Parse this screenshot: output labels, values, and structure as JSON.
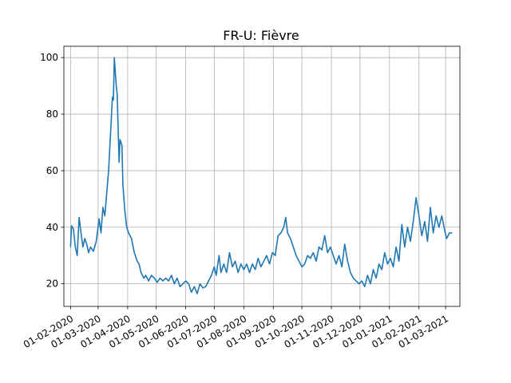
{
  "chart_data": {
    "type": "line",
    "title": "FR-U: Fièvre",
    "xlabel": "",
    "ylabel": "",
    "grid": true,
    "x_range": [
      "2020-01-25",
      "2021-03-16"
    ],
    "ylim": [
      12,
      104
    ],
    "x_ticks": [
      "2020-02-01",
      "2020-03-01",
      "2020-04-01",
      "2020-05-01",
      "2020-06-01",
      "2020-07-01",
      "2020-08-01",
      "2020-09-01",
      "2020-10-01",
      "2020-11-01",
      "2020-12-01",
      "2021-01-01",
      "2021-02-01",
      "2021-03-01"
    ],
    "x_tick_labels": [
      "01-02-2020",
      "01-03-2020",
      "01-04-2020",
      "01-05-2020",
      "01-06-2020",
      "01-07-2020",
      "01-08-2020",
      "01-09-2020",
      "01-10-2020",
      "01-11-2020",
      "01-12-2020",
      "01-01-2021",
      "01-02-2021",
      "01-03-2021"
    ],
    "y_ticks": [
      20,
      40,
      60,
      80,
      100
    ],
    "y_tick_labels": [
      "20",
      "40",
      "60",
      "80",
      "100"
    ],
    "series": [
      {
        "color": "#1f77b4",
        "points": [
          [
            "2020-02-01",
            33
          ],
          [
            "2020-02-02",
            40.5
          ],
          [
            "2020-02-04",
            39.5
          ],
          [
            "2020-02-06",
            33
          ],
          [
            "2020-02-08",
            30
          ],
          [
            "2020-02-10",
            43.5
          ],
          [
            "2020-02-12",
            38
          ],
          [
            "2020-02-14",
            33
          ],
          [
            "2020-02-16",
            36
          ],
          [
            "2020-02-18",
            34
          ],
          [
            "2020-02-20",
            31
          ],
          [
            "2020-02-22",
            33
          ],
          [
            "2020-02-25",
            31.5
          ],
          [
            "2020-02-28",
            35
          ],
          [
            "2020-03-02",
            43
          ],
          [
            "2020-03-04",
            38
          ],
          [
            "2020-03-06",
            47
          ],
          [
            "2020-03-08",
            44
          ],
          [
            "2020-03-10",
            52
          ],
          [
            "2020-03-12",
            60
          ],
          [
            "2020-03-14",
            73
          ],
          [
            "2020-03-16",
            86
          ],
          [
            "2020-03-17",
            85
          ],
          [
            "2020-03-18",
            100
          ],
          [
            "2020-03-20",
            90
          ],
          [
            "2020-03-21",
            87
          ],
          [
            "2020-03-23",
            63
          ],
          [
            "2020-03-24",
            71
          ],
          [
            "2020-03-26",
            69
          ],
          [
            "2020-03-27",
            55
          ],
          [
            "2020-03-29",
            46
          ],
          [
            "2020-03-31",
            40
          ],
          [
            "2020-04-02",
            38
          ],
          [
            "2020-04-05",
            36
          ],
          [
            "2020-04-08",
            31
          ],
          [
            "2020-04-11",
            28
          ],
          [
            "2020-04-13",
            27
          ],
          [
            "2020-04-15",
            24
          ],
          [
            "2020-04-18",
            22
          ],
          [
            "2020-04-20",
            23
          ],
          [
            "2020-04-23",
            21
          ],
          [
            "2020-04-26",
            23
          ],
          [
            "2020-04-29",
            22
          ],
          [
            "2020-05-02",
            20.5
          ],
          [
            "2020-05-05",
            22
          ],
          [
            "2020-05-08",
            21
          ],
          [
            "2020-05-11",
            22
          ],
          [
            "2020-05-14",
            21
          ],
          [
            "2020-05-17",
            23
          ],
          [
            "2020-05-20",
            20
          ],
          [
            "2020-05-23",
            22
          ],
          [
            "2020-05-26",
            19
          ],
          [
            "2020-05-29",
            20
          ],
          [
            "2020-06-01",
            21
          ],
          [
            "2020-06-04",
            20
          ],
          [
            "2020-06-07",
            17
          ],
          [
            "2020-06-10",
            19
          ],
          [
            "2020-06-13",
            16.5
          ],
          [
            "2020-06-16",
            20
          ],
          [
            "2020-06-19",
            18.5
          ],
          [
            "2020-06-22",
            19
          ],
          [
            "2020-06-25",
            21
          ],
          [
            "2020-06-28",
            23
          ],
          [
            "2020-07-01",
            26
          ],
          [
            "2020-07-03",
            23
          ],
          [
            "2020-07-06",
            30
          ],
          [
            "2020-07-08",
            24
          ],
          [
            "2020-07-11",
            27
          ],
          [
            "2020-07-14",
            24
          ],
          [
            "2020-07-17",
            31
          ],
          [
            "2020-07-20",
            26
          ],
          [
            "2020-07-23",
            28
          ],
          [
            "2020-07-26",
            24
          ],
          [
            "2020-07-29",
            27
          ],
          [
            "2020-08-01",
            25
          ],
          [
            "2020-08-04",
            27
          ],
          [
            "2020-08-07",
            24
          ],
          [
            "2020-08-10",
            27
          ],
          [
            "2020-08-13",
            25
          ],
          [
            "2020-08-16",
            29
          ],
          [
            "2020-08-19",
            26
          ],
          [
            "2020-08-22",
            28
          ],
          [
            "2020-08-25",
            30
          ],
          [
            "2020-08-28",
            27
          ],
          [
            "2020-08-31",
            31
          ],
          [
            "2020-09-03",
            30
          ],
          [
            "2020-09-06",
            37
          ],
          [
            "2020-09-09",
            38
          ],
          [
            "2020-09-12",
            40
          ],
          [
            "2020-09-14",
            43.5
          ],
          [
            "2020-09-16",
            38
          ],
          [
            "2020-09-19",
            36
          ],
          [
            "2020-09-22",
            33
          ],
          [
            "2020-09-25",
            30
          ],
          [
            "2020-09-28",
            28
          ],
          [
            "2020-10-01",
            26
          ],
          [
            "2020-10-04",
            27
          ],
          [
            "2020-10-07",
            30
          ],
          [
            "2020-10-10",
            29
          ],
          [
            "2020-10-13",
            31
          ],
          [
            "2020-10-16",
            28
          ],
          [
            "2020-10-19",
            33
          ],
          [
            "2020-10-22",
            32
          ],
          [
            "2020-10-25",
            37
          ],
          [
            "2020-10-28",
            31
          ],
          [
            "2020-10-31",
            33
          ],
          [
            "2020-11-03",
            30
          ],
          [
            "2020-11-06",
            27
          ],
          [
            "2020-11-09",
            30
          ],
          [
            "2020-11-12",
            26
          ],
          [
            "2020-11-15",
            34
          ],
          [
            "2020-11-18",
            28
          ],
          [
            "2020-11-21",
            24
          ],
          [
            "2020-11-24",
            22
          ],
          [
            "2020-11-27",
            21
          ],
          [
            "2020-11-30",
            20
          ],
          [
            "2020-12-03",
            21
          ],
          [
            "2020-12-06",
            19
          ],
          [
            "2020-12-09",
            23
          ],
          [
            "2020-12-12",
            20
          ],
          [
            "2020-12-15",
            25
          ],
          [
            "2020-12-18",
            22
          ],
          [
            "2020-12-21",
            27
          ],
          [
            "2020-12-24",
            25
          ],
          [
            "2020-12-27",
            31
          ],
          [
            "2020-12-30",
            27
          ],
          [
            "2021-01-02",
            29
          ],
          [
            "2021-01-05",
            26
          ],
          [
            "2021-01-08",
            33
          ],
          [
            "2021-01-11",
            28
          ],
          [
            "2021-01-14",
            41
          ],
          [
            "2021-01-17",
            33
          ],
          [
            "2021-01-20",
            40
          ],
          [
            "2021-01-23",
            35
          ],
          [
            "2021-01-26",
            42
          ],
          [
            "2021-01-29",
            50.5
          ],
          [
            "2021-02-01",
            44
          ],
          [
            "2021-02-04",
            37
          ],
          [
            "2021-02-07",
            42
          ],
          [
            "2021-02-10",
            35
          ],
          [
            "2021-02-13",
            47
          ],
          [
            "2021-02-16",
            38
          ],
          [
            "2021-02-19",
            44
          ],
          [
            "2021-02-22",
            40
          ],
          [
            "2021-02-25",
            44
          ],
          [
            "2021-02-28",
            39
          ],
          [
            "2021-03-02",
            36
          ],
          [
            "2021-03-05",
            38
          ],
          [
            "2021-03-08",
            38
          ]
        ]
      }
    ]
  }
}
